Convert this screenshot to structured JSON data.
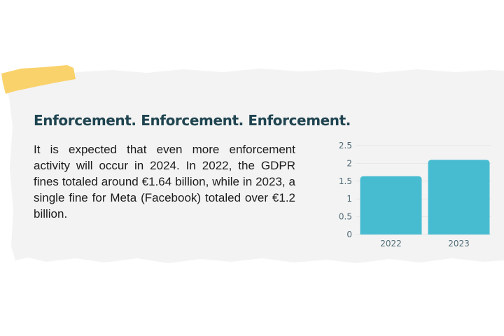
{
  "heading": "Enforcement. Enforcement. Enforcement.",
  "paragraph": "It is expected that even more enforcement activity will occur in 2024. In 2022, the GDPR fines totaled around €1.64 billion, while in 2023, a single fine for Meta (Facebook) totaled over €1.2 billion.",
  "colors": {
    "heading": "#1f4450",
    "bar": "#47bcd1",
    "accent": "#f9d26b",
    "panel": "#f3f3f3"
  },
  "chart_data": {
    "type": "bar",
    "title": "",
    "xlabel": "",
    "ylabel": "",
    "categories": [
      "2022",
      "2023"
    ],
    "values": [
      1.64,
      2.1
    ],
    "ylim": [
      0,
      2.5
    ],
    "yticks": [
      "0",
      "0.5",
      "1",
      "1.5",
      "2",
      "2.5"
    ],
    "grid": true
  }
}
